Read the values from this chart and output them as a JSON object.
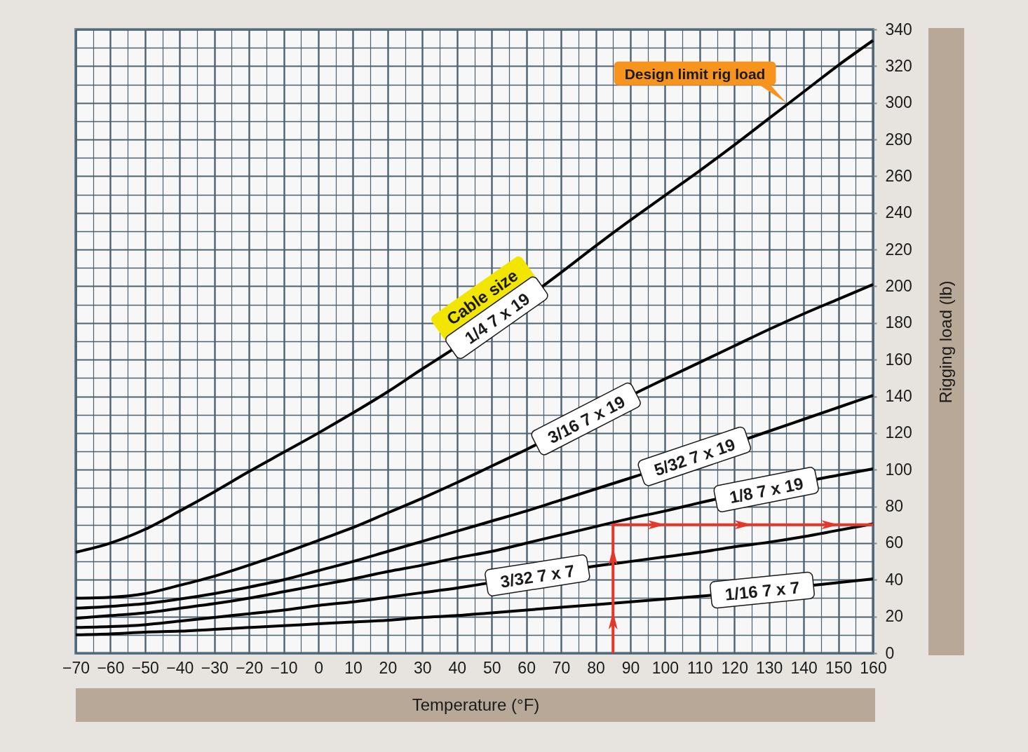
{
  "chart_data": {
    "type": "line",
    "xlabel": "Temperature (°F)",
    "ylabel": "Rigging load (lb)",
    "series": [
      {
        "name": "1/4 7 x 19",
        "color": "#000000",
        "x": [
          -70,
          -60,
          -50,
          -40,
          -30,
          -20,
          -10,
          0,
          10,
          20,
          30,
          35,
          70,
          80,
          90,
          100,
          110,
          120,
          130,
          140,
          150,
          160
        ],
        "values": [
          55,
          60,
          67.5,
          77.5,
          88,
          99,
          109.5,
          120,
          131,
          142.5,
          155,
          161,
          207.5,
          222,
          236,
          249.5,
          263,
          277,
          291.5,
          306,
          320.5,
          334
        ]
      },
      {
        "name": "3/16 7 x 19",
        "color": "#000000",
        "x": [
          -70,
          -60,
          -50,
          -40,
          -30,
          -20,
          -10,
          0,
          10,
          20,
          30,
          40,
          50,
          60,
          95,
          100,
          110,
          120,
          130,
          140,
          150,
          160
        ],
        "values": [
          30,
          30.5,
          32.5,
          37,
          42,
          48,
          54.5,
          61.5,
          68.5,
          76.5,
          84.5,
          93,
          102,
          111,
          145,
          149.5,
          158.5,
          167.5,
          176.5,
          185,
          193,
          201
        ]
      },
      {
        "name": "5/32 7 x 19",
        "color": "#000000",
        "x": [
          -70,
          -60,
          -50,
          -40,
          -30,
          -20,
          -10,
          0,
          10,
          20,
          30,
          40,
          50,
          60,
          70,
          80,
          90,
          130,
          140,
          150,
          160
        ],
        "values": [
          24.5,
          25.5,
          27,
          29.5,
          32.5,
          36,
          40,
          45,
          50,
          55.5,
          61,
          66.5,
          72,
          77.5,
          83.5,
          89.5,
          95.5,
          121,
          127.5,
          134,
          140.5
        ]
      },
      {
        "name": "1/8 7 x 19",
        "color": "#000000",
        "x": [
          -70,
          -60,
          -50,
          -40,
          -30,
          -20,
          -10,
          0,
          10,
          20,
          30,
          40,
          50,
          60,
          70,
          80,
          90,
          100,
          110,
          150,
          160
        ],
        "values": [
          19,
          20.5,
          22,
          24.5,
          27,
          30,
          33.5,
          37,
          40.5,
          44.5,
          48,
          52,
          55.5,
          60,
          64.5,
          69,
          73.5,
          77.5,
          82,
          97,
          100.5
        ]
      },
      {
        "name": "3/32 7 x 7",
        "color": "#000000",
        "x": [
          -70,
          -60,
          -50,
          -40,
          -30,
          -20,
          -10,
          0,
          10,
          20,
          30,
          40,
          45,
          82,
          90,
          100,
          110,
          120,
          130,
          140,
          150,
          160
        ],
        "values": [
          14,
          14.5,
          15.5,
          17.5,
          19.5,
          21.5,
          23.5,
          26,
          28,
          30.5,
          33,
          35.5,
          37,
          48,
          50,
          52.5,
          55,
          58,
          60.5,
          63.5,
          67,
          70.5
        ]
      },
      {
        "name": "1/16 7 x 7",
        "color": "#000000",
        "x": [
          -70,
          -60,
          -50,
          -40,
          -30,
          -20,
          -10,
          0,
          10,
          20,
          30,
          40,
          50,
          60,
          70,
          80,
          90,
          100,
          110,
          150,
          160
        ],
        "values": [
          10,
          10.5,
          11.5,
          12,
          13,
          14,
          15,
          16,
          17,
          18,
          19.5,
          20.5,
          22,
          23.5,
          25,
          26.5,
          28,
          29.5,
          31,
          38.5,
          40.5
        ]
      },
      {
        "color": "#e5362a",
        "x": [
          85,
          85,
          160
        ],
        "values": [
          0,
          70,
          70
        ]
      }
    ],
    "xlim": [
      -70,
      160
    ],
    "xticks": [
      -70,
      {
        "value": -65,
        "label": null
      },
      -60,
      {
        "value": -55,
        "label": null
      },
      -50,
      {
        "value": -45,
        "label": null
      },
      -40,
      {
        "value": -35,
        "label": null
      },
      -30,
      {
        "value": -25,
        "label": null
      },
      -20,
      {
        "value": -15,
        "label": null
      },
      -10,
      {
        "value": -5,
        "label": null
      },
      0,
      {
        "value": 5,
        "label": null
      },
      10,
      {
        "value": 15,
        "label": null
      },
      20,
      {
        "value": 25,
        "label": null
      },
      30,
      {
        "value": 35,
        "label": null
      },
      40,
      {
        "value": 45,
        "label": null
      },
      50,
      {
        "value": 55,
        "label": null
      },
      60,
      {
        "value": 65,
        "label": null
      },
      70,
      {
        "value": 75,
        "label": null
      },
      80,
      {
        "value": 85,
        "label": null
      },
      90,
      {
        "value": 95,
        "label": null
      },
      100,
      {
        "value": 105,
        "label": null
      },
      110,
      {
        "value": 115,
        "label": null
      },
      120,
      {
        "value": 125,
        "label": null
      },
      130,
      {
        "value": 135,
        "label": null
      },
      140,
      {
        "value": 145,
        "label": null
      },
      150,
      {
        "value": 155,
        "label": null
      },
      160
    ],
    "ylim": [
      0,
      340
    ],
    "yticks": [
      0,
      {
        "value": 10,
        "label": null
      },
      20,
      {
        "value": 30,
        "label": null
      },
      40,
      {
        "value": 50,
        "label": null
      },
      60,
      {
        "value": 70,
        "label": null
      },
      80,
      {
        "value": 90,
        "label": null
      },
      100,
      {
        "value": 110,
        "label": null
      },
      120,
      {
        "value": 130,
        "label": null
      },
      140,
      {
        "value": 150,
        "label": null
      },
      160,
      {
        "value": 170,
        "label": null
      },
      180,
      {
        "value": 190,
        "label": null
      },
      200,
      {
        "value": 210,
        "label": null
      },
      220,
      {
        "value": 230,
        "label": null
      },
      240,
      {
        "value": 250,
        "label": null
      },
      260,
      {
        "value": 270,
        "label": null
      },
      280,
      {
        "value": 290,
        "label": null
      },
      300,
      {
        "value": 310,
        "label": null
      },
      320,
      {
        "value": 330,
        "label": null
      },
      340
    ],
    "grid": true,
    "annotations": [
      {
        "text": "Design limit rig load",
        "x": 135,
        "y": 300
      },
      "Cable size"
    ]
  }
}
